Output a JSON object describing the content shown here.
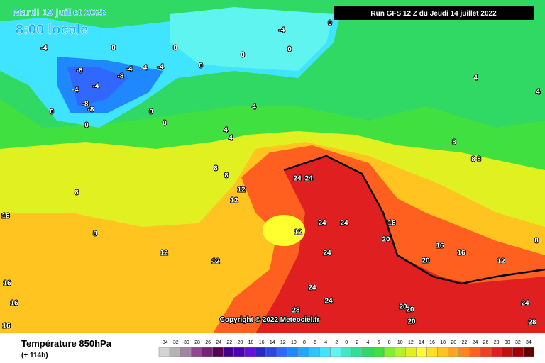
{
  "header": {
    "date": "Mardi 19 juillet 2022",
    "time": "8:00 locale",
    "run": "Run GFS 12 Z du Jeudi 14 juillet 2022"
  },
  "copyright": "Copyright © 2022 Meteociel.fr",
  "legend": {
    "title": "Température 850hPa",
    "lead": "(+ 114h)",
    "labels": [
      -34,
      -32,
      -30,
      -28,
      -26,
      -24,
      -22,
      -20,
      -18,
      -16,
      -14,
      -12,
      -10,
      -8,
      -6,
      -4,
      -2,
      0,
      2,
      4,
      6,
      8,
      10,
      12,
      14,
      16,
      18,
      20,
      22,
      24,
      26,
      28,
      30,
      32,
      34
    ],
    "colors": [
      "#d4d4d4",
      "#b4b4b4",
      "#a484a4",
      "#904890",
      "#782078",
      "#580058",
      "#440088",
      "#5000b4",
      "#6410d8",
      "#2828c8",
      "#2848e4",
      "#3068ff",
      "#2088ff",
      "#20a8ff",
      "#30c4ff",
      "#40e4ff",
      "#60f4f0",
      "#40e8c4",
      "#30e094",
      "#30d864",
      "#40e040",
      "#80f030",
      "#b4f030",
      "#e0f020",
      "#ffff30",
      "#ffe020",
      "#ffc420",
      "#ffa420",
      "#ff8420",
      "#ff6020",
      "#f04020",
      "#e02020",
      "#c01010",
      "#a00000",
      "#600000"
    ]
  },
  "contour_labels": [
    0,
    -4,
    0,
    0,
    0,
    0,
    0,
    -4,
    -8,
    -4,
    -4,
    -4,
    -8,
    -4,
    -4,
    -8,
    -8,
    0,
    0,
    0,
    0,
    4,
    4,
    4,
    8,
    8,
    8,
    12,
    12,
    8,
    12,
    12,
    12,
    24,
    24,
    24,
    24,
    24,
    24,
    24,
    28,
    16,
    20,
    16,
    16,
    20,
    20,
    20,
    20,
    12,
    8,
    24,
    28,
    4,
    4,
    16,
    16,
    16,
    16,
    8,
    8,
    8
  ]
}
